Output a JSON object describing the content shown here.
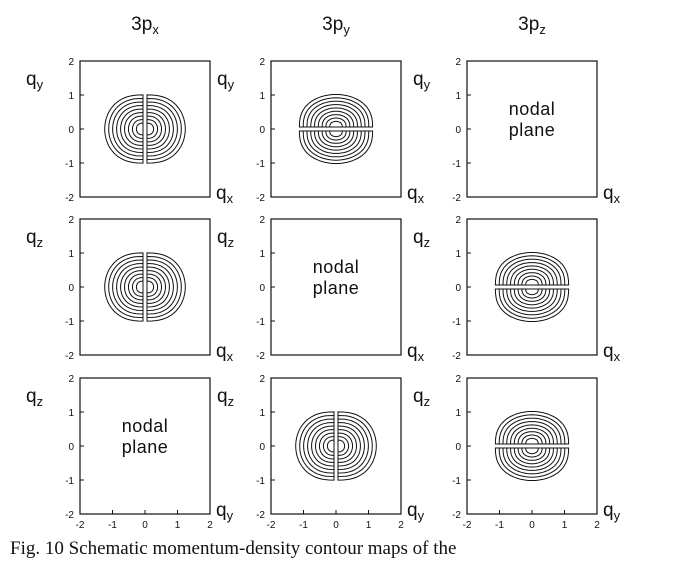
{
  "figure": {
    "columns": [
      {
        "main": "3p",
        "sub": "x"
      },
      {
        "main": "3p",
        "sub": "y"
      },
      {
        "main": "3p",
        "sub": "z"
      }
    ],
    "panels": [
      {
        "row": 0,
        "col": 0,
        "type": "lobes",
        "lobe_axis": "horizontal",
        "y_axis": {
          "main": "q",
          "sub": "y"
        },
        "x_axis": {
          "main": "q",
          "sub": "x"
        },
        "show_x_ticks": false
      },
      {
        "row": 0,
        "col": 1,
        "type": "lobes",
        "lobe_axis": "vertical",
        "y_axis": {
          "main": "q",
          "sub": "y"
        },
        "x_axis": {
          "main": "q",
          "sub": "x"
        },
        "show_x_ticks": false
      },
      {
        "row": 0,
        "col": 2,
        "type": "nodal",
        "nodal_text": [
          "nodal",
          "plane"
        ],
        "y_axis": {
          "main": "q",
          "sub": "y"
        },
        "x_axis": {
          "main": "q",
          "sub": "x"
        },
        "show_x_ticks": false
      },
      {
        "row": 1,
        "col": 0,
        "type": "lobes",
        "lobe_axis": "horizontal",
        "y_axis": {
          "main": "q",
          "sub": "z"
        },
        "x_axis": {
          "main": "q",
          "sub": "x"
        },
        "show_x_ticks": false
      },
      {
        "row": 1,
        "col": 1,
        "type": "nodal",
        "nodal_text": [
          "nodal",
          "plane"
        ],
        "y_axis": {
          "main": "q",
          "sub": "z"
        },
        "x_axis": {
          "main": "q",
          "sub": "x"
        },
        "show_x_ticks": false
      },
      {
        "row": 1,
        "col": 2,
        "type": "lobes",
        "lobe_axis": "vertical",
        "y_axis": {
          "main": "q",
          "sub": "z"
        },
        "x_axis": {
          "main": "q",
          "sub": "x"
        },
        "show_x_ticks": false
      },
      {
        "row": 2,
        "col": 0,
        "type": "nodal",
        "nodal_text": [
          "nodal",
          "plane"
        ],
        "y_axis": {
          "main": "q",
          "sub": "z"
        },
        "x_axis": {
          "main": "q",
          "sub": "y"
        },
        "show_x_ticks": true
      },
      {
        "row": 2,
        "col": 1,
        "type": "lobes",
        "lobe_axis": "horizontal",
        "y_axis": {
          "main": "q",
          "sub": "z"
        },
        "x_axis": {
          "main": "q",
          "sub": "y"
        },
        "show_x_ticks": true
      },
      {
        "row": 2,
        "col": 2,
        "type": "lobes",
        "lobe_axis": "vertical",
        "y_axis": {
          "main": "q",
          "sub": "z"
        },
        "x_axis": {
          "main": "q",
          "sub": "y"
        },
        "show_x_ticks": true
      }
    ],
    "axis_range": [
      -2,
      2
    ],
    "y_ticks": [
      "2",
      "1",
      "0",
      "-1",
      "-2"
    ],
    "x_ticks": [
      "-2",
      "-1",
      "0",
      "1",
      "2"
    ],
    "contour_levels": 9,
    "line_color": "#111111"
  },
  "caption": "Fig. 10  Schematic momentum-density contour maps of the"
}
